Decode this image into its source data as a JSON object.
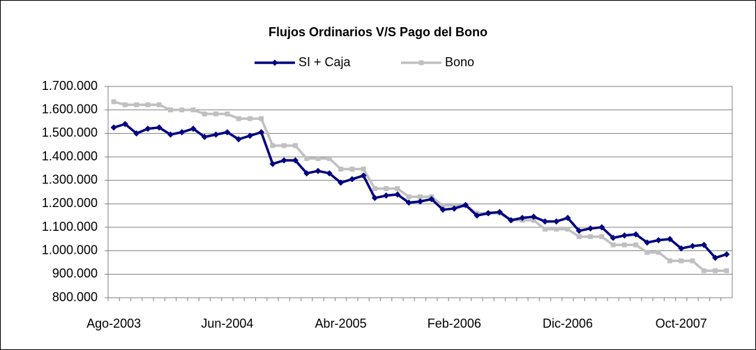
{
  "chart_data": {
    "type": "line",
    "title": "Flujos Ordinarios V/S Pago del Bono",
    "categories": [
      "Ago-2003",
      null,
      null,
      null,
      null,
      null,
      null,
      null,
      null,
      null,
      "Jun-2004",
      null,
      null,
      null,
      null,
      null,
      null,
      null,
      null,
      null,
      "Abr-2005",
      null,
      null,
      null,
      null,
      null,
      null,
      null,
      null,
      null,
      "Feb-2006",
      null,
      null,
      null,
      null,
      null,
      null,
      null,
      null,
      null,
      "Dic-2006",
      null,
      null,
      null,
      null,
      null,
      null,
      null,
      null,
      null,
      "Oct-2007",
      null,
      null,
      null,
      null
    ],
    "series": [
      {
        "name": "SI + Caja",
        "color": "#000080",
        "marker": "diamond",
        "values": [
          1525000,
          1540000,
          1500000,
          1520000,
          1525000,
          1495000,
          1505000,
          1520000,
          1485000,
          1495000,
          1505000,
          1475000,
          1490000,
          1505000,
          1370000,
          1385000,
          1385000,
          1330000,
          1340000,
          1330000,
          1290000,
          1305000,
          1320000,
          1225000,
          1235000,
          1240000,
          1205000,
          1210000,
          1220000,
          1175000,
          1180000,
          1195000,
          1150000,
          1160000,
          1165000,
          1130000,
          1140000,
          1145000,
          1125000,
          1125000,
          1140000,
          1085000,
          1095000,
          1100000,
          1055000,
          1065000,
          1070000,
          1035000,
          1045000,
          1050000,
          1010000,
          1020000,
          1025000,
          970000,
          985000
        ]
      },
      {
        "name": "Bono",
        "color": "#c0c0c0",
        "marker": "square",
        "values": [
          1635000,
          1622000,
          1622000,
          1622000,
          1622000,
          1600000,
          1600000,
          1600000,
          1583000,
          1583000,
          1583000,
          1563000,
          1563000,
          1563000,
          1448000,
          1448000,
          1448000,
          1393000,
          1393000,
          1393000,
          1348000,
          1348000,
          1348000,
          1265000,
          1265000,
          1265000,
          1230000,
          1230000,
          1230000,
          1193000,
          1193000,
          1193000,
          1160000,
          1160000,
          1160000,
          1130000,
          1130000,
          1130000,
          1092000,
          1092000,
          1092000,
          1060000,
          1060000,
          1060000,
          1025000,
          1025000,
          1025000,
          993000,
          993000,
          957000,
          957000,
          957000,
          915000,
          915000,
          915000
        ]
      }
    ],
    "ylim": [
      800000,
      1700000
    ],
    "yticks": [
      {
        "value": 800000,
        "label": "800.000"
      },
      {
        "value": 900000,
        "label": "900.000"
      },
      {
        "value": 1000000,
        "label": "1.000.000"
      },
      {
        "value": 1100000,
        "label": "1.100.000"
      },
      {
        "value": 1200000,
        "label": "1.200.000"
      },
      {
        "value": 1300000,
        "label": "1.300.000"
      },
      {
        "value": 1400000,
        "label": "1.400.000"
      },
      {
        "value": 1500000,
        "label": "1.500.000"
      },
      {
        "value": 1600000,
        "label": "1.600.000"
      },
      {
        "value": 1700000,
        "label": "1.700.000"
      }
    ],
    "grid": true,
    "legend": "top"
  }
}
